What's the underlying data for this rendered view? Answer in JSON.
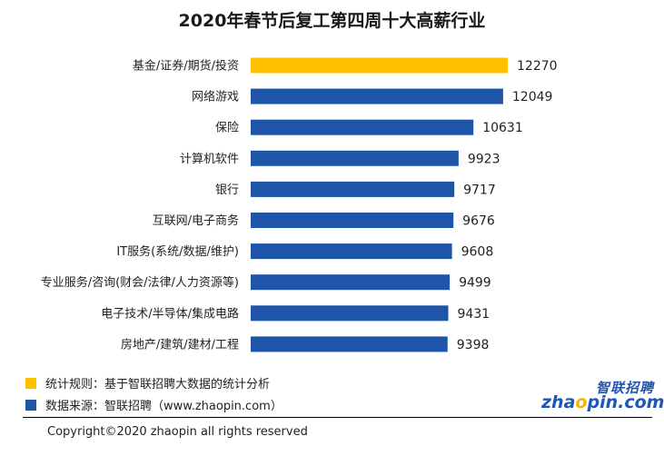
{
  "colors": {
    "highlight": "#FFC000",
    "bar": "#1F55A8",
    "background": "#FFFFFF"
  },
  "notes": {
    "rule": "统计规则：基于智联招聘大数据的统计分析",
    "source": "数据来源：智联招聘（www.zhaopin.com）"
  },
  "footer": {
    "copyright": "Copyright©2020 zhaopin all rights reserved"
  },
  "logo": {
    "cn_text": "智联招聘",
    "en_prefix": "zha",
    "en_o": "o",
    "en_suffix": "pin.com"
  },
  "chart_data": {
    "type": "bar",
    "orientation": "horizontal",
    "title": "2020年春节后复工第四周十大高薪行业",
    "categories": [
      "基金/证券/期货/投资",
      "网络游戏",
      "保险",
      "计算机软件",
      "银行",
      "互联网/电子商务",
      "IT服务(系统/数据/维护)",
      "专业服务/咨询(财会/法律/人力资源等)",
      "电子技术/半导体/集成电路",
      "房地产/建筑/建材/工程"
    ],
    "values": [
      12270,
      12049,
      10631,
      9923,
      9717,
      9676,
      9608,
      9499,
      9431,
      9398
    ],
    "highlight_index": 0,
    "xlim": [
      0,
      12270
    ],
    "grid": false,
    "legend": "none"
  }
}
